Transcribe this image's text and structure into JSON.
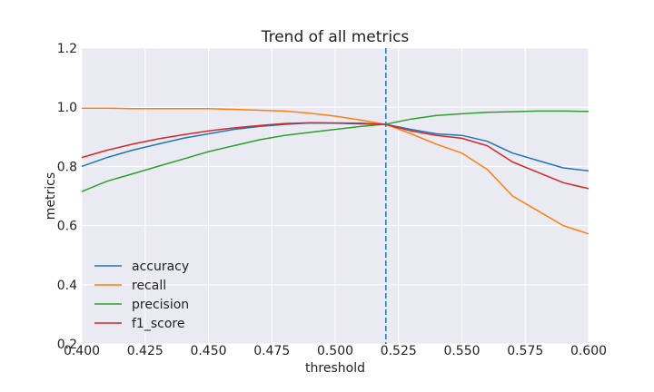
{
  "chart_data": {
    "type": "line",
    "title": "Trend of all metrics",
    "xlabel": "threshold",
    "ylabel": "metrics",
    "xlim": [
      0.4,
      0.6
    ],
    "ylim": [
      0.2,
      1.2
    ],
    "xticks": [
      "0.400",
      "0.425",
      "0.450",
      "0.475",
      "0.500",
      "0.525",
      "0.550",
      "0.575",
      "0.600"
    ],
    "yticks": [
      "0.2",
      "0.4",
      "0.6",
      "0.8",
      "1.0",
      "1.2"
    ],
    "grid": true,
    "legend_position": "lower-left",
    "vline": {
      "x": 0.52,
      "style": "dashed",
      "color": "#1f77b4"
    },
    "series": [
      {
        "name": "accuracy",
        "color": "#1f77b4",
        "x": [
          0.4,
          0.41,
          0.42,
          0.43,
          0.44,
          0.45,
          0.46,
          0.47,
          0.48,
          0.49,
          0.5,
          0.51,
          0.52,
          0.53,
          0.54,
          0.55,
          0.56,
          0.57,
          0.58,
          0.59,
          0.6
        ],
        "y": [
          0.8,
          0.83,
          0.855,
          0.875,
          0.895,
          0.91,
          0.925,
          0.935,
          0.942,
          0.947,
          0.946,
          0.944,
          0.942,
          0.925,
          0.91,
          0.905,
          0.885,
          0.845,
          0.82,
          0.795,
          0.785
        ]
      },
      {
        "name": "recall",
        "color": "#ff7f0e",
        "x": [
          0.4,
          0.41,
          0.42,
          0.43,
          0.44,
          0.45,
          0.46,
          0.47,
          0.48,
          0.49,
          0.5,
          0.51,
          0.52,
          0.53,
          0.54,
          0.55,
          0.56,
          0.57,
          0.58,
          0.59,
          0.6
        ],
        "y": [
          0.997,
          0.997,
          0.995,
          0.995,
          0.995,
          0.995,
          0.993,
          0.99,
          0.987,
          0.98,
          0.97,
          0.957,
          0.942,
          0.91,
          0.875,
          0.845,
          0.79,
          0.7,
          0.65,
          0.6,
          0.572
        ]
      },
      {
        "name": "precision",
        "color": "#2ca02c",
        "x": [
          0.4,
          0.41,
          0.42,
          0.43,
          0.44,
          0.45,
          0.46,
          0.47,
          0.48,
          0.49,
          0.5,
          0.51,
          0.52,
          0.53,
          0.54,
          0.55,
          0.56,
          0.57,
          0.58,
          0.59,
          0.6
        ],
        "y": [
          0.715,
          0.75,
          0.775,
          0.8,
          0.825,
          0.85,
          0.87,
          0.89,
          0.905,
          0.915,
          0.925,
          0.935,
          0.943,
          0.96,
          0.972,
          0.978,
          0.983,
          0.985,
          0.987,
          0.987,
          0.986
        ]
      },
      {
        "name": "f1_score",
        "color": "#d62728",
        "x": [
          0.4,
          0.41,
          0.42,
          0.43,
          0.44,
          0.45,
          0.46,
          0.47,
          0.48,
          0.49,
          0.5,
          0.51,
          0.52,
          0.53,
          0.54,
          0.55,
          0.56,
          0.57,
          0.58,
          0.59,
          0.6
        ],
        "y": [
          0.83,
          0.855,
          0.875,
          0.893,
          0.907,
          0.92,
          0.93,
          0.938,
          0.945,
          0.948,
          0.947,
          0.946,
          0.942,
          0.92,
          0.905,
          0.895,
          0.87,
          0.815,
          0.78,
          0.745,
          0.725
        ]
      }
    ]
  }
}
